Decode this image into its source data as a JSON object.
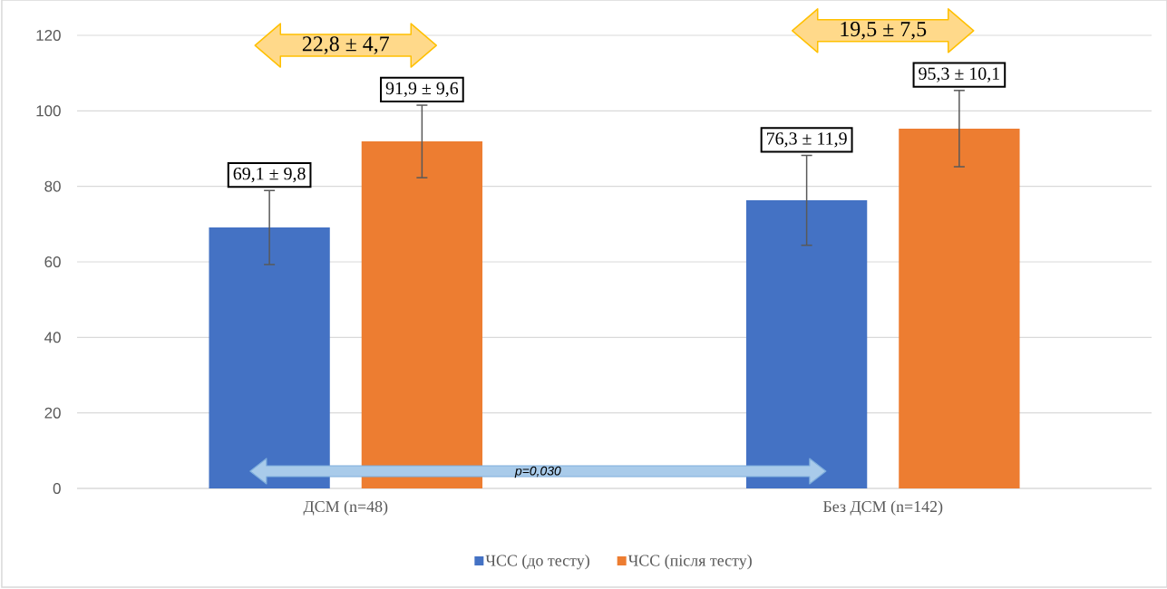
{
  "chart_data": {
    "type": "bar",
    "categories": [
      "ДСМ (n=48)",
      "Без ДСМ  (n=142)"
    ],
    "series": [
      {
        "name": "ЧСС (до тесту)",
        "color": "#4472c4",
        "values": [
          69.1,
          76.3
        ],
        "errors": [
          9.8,
          11.9
        ],
        "value_labels": [
          "69,1 ± 9,8",
          "76,3 ± 11,9"
        ]
      },
      {
        "name": "ЧСС (після тесту)",
        "color": "#ed7d31",
        "values": [
          91.9,
          95.3
        ],
        "errors": [
          9.6,
          10.1
        ],
        "value_labels": [
          "91,9 ± 9,6",
          "95,3 ± 10,1"
        ]
      }
    ],
    "ylim": [
      0,
      120
    ],
    "yticks": [
      0,
      20,
      40,
      60,
      80,
      100,
      120
    ],
    "grid": "y",
    "legend": "bottom",
    "annotations": [
      "22,8 ± 4,7",
      "19,5 ± 7,5",
      "p=0,030"
    ]
  }
}
